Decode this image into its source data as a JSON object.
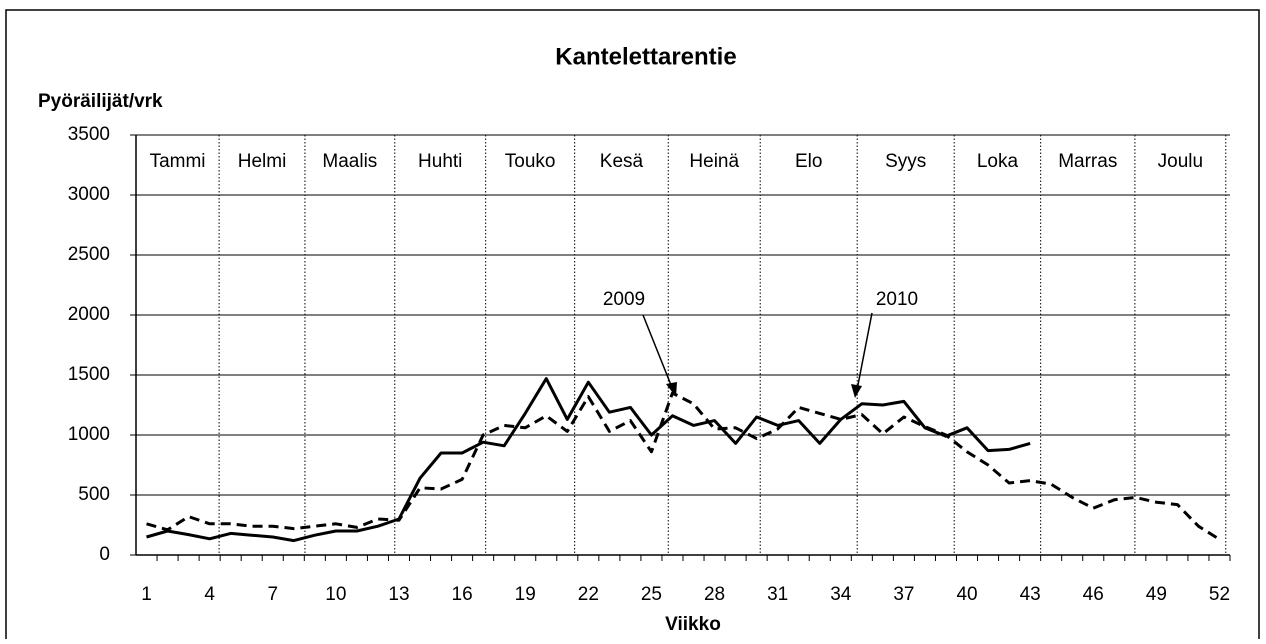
{
  "chart_data": {
    "type": "line",
    "title": "Kantelettarentie",
    "y_label": "Pyöräilijät/vrk",
    "x_label": "Viikko",
    "xlim": [
      0.5,
      52.5
    ],
    "xticks": [
      1,
      4,
      7,
      10,
      13,
      16,
      19,
      22,
      25,
      28,
      31,
      34,
      37,
      40,
      43,
      46,
      49,
      52
    ],
    "ylim": [
      0,
      3500
    ],
    "yticks": [
      0,
      500,
      1000,
      1500,
      2000,
      2500,
      3000,
      3500
    ],
    "grid": true,
    "months": [
      "Tammi",
      "Helmi",
      "Maalis",
      "Huhti",
      "Touko",
      "Kesä",
      "Heinä",
      "Elo",
      "Syys",
      "Loka",
      "Marras",
      "Joulu"
    ],
    "month_boundaries": [
      4.45,
      8.53,
      12.8,
      17.12,
      21.35,
      25.8,
      30.17,
      34.78,
      39.39,
      43.5,
      47.98,
      52.3
    ],
    "x": [
      1,
      2,
      3,
      4,
      5,
      6,
      7,
      8,
      9,
      10,
      11,
      12,
      13,
      14,
      15,
      16,
      17,
      18,
      19,
      20,
      21,
      22,
      23,
      24,
      25,
      26,
      27,
      28,
      29,
      30,
      31,
      32,
      33,
      34,
      35,
      36,
      37,
      38,
      39,
      40,
      41,
      42,
      43,
      44,
      45,
      46,
      47,
      48,
      49,
      50,
      51,
      52
    ],
    "series": [
      {
        "name": "2009",
        "color": "#000000",
        "dash": true,
        "values": [
          260,
          210,
          320,
          260,
          260,
          240,
          240,
          220,
          240,
          260,
          230,
          300,
          290,
          560,
          550,
          630,
          1000,
          1080,
          1060,
          1160,
          1030,
          1320,
          1030,
          1120,
          860,
          1350,
          1260,
          1050,
          1060,
          970,
          1050,
          1230,
          1180,
          1130,
          1170,
          1010,
          1150,
          1070,
          1000,
          860,
          750,
          600,
          620,
          590,
          480,
          390,
          460,
          480,
          440,
          420,
          240,
          130
        ]
      },
      {
        "name": "2010",
        "color": "#000000",
        "dash": false,
        "values": [
          150,
          200,
          170,
          135,
          180,
          165,
          150,
          120,
          165,
          200,
          200,
          240,
          300,
          640,
          850,
          850,
          940,
          910,
          1180,
          1470,
          1130,
          1440,
          1190,
          1230,
          1000,
          1160,
          1080,
          1120,
          930,
          1150,
          1080,
          1120,
          930,
          1130,
          1260,
          1250,
          1280,
          1060,
          990,
          1060,
          870,
          880,
          930,
          null,
          null,
          null,
          null,
          null,
          null,
          null,
          null,
          null
        ]
      }
    ]
  }
}
